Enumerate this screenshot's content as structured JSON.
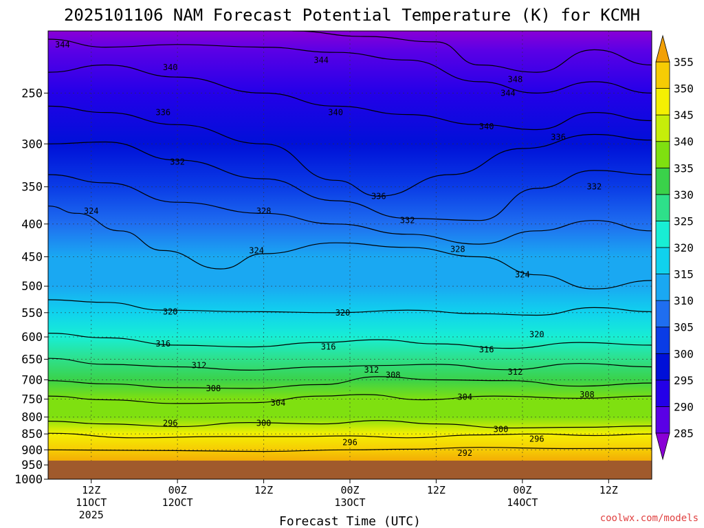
{
  "chart_data": {
    "type": "heatmap",
    "title": "2025101106 NAM Forecast Potential Temperature (K) for KCMH",
    "xlabel": "Forecast Time (UTC)",
    "ylabel": "",
    "credit": "coolwx.com/models",
    "x_range": [
      6,
      90
    ],
    "y_range": [
      1000,
      200
    ],
    "y_scale": "log",
    "grid": "dotted",
    "y_ticks": [
      250,
      300,
      350,
      400,
      450,
      500,
      550,
      600,
      650,
      700,
      750,
      800,
      850,
      900,
      950,
      1000
    ],
    "x_ticks": [
      {
        "hour": 12,
        "label": "12Z",
        "date": "11OCT",
        "year": "2025"
      },
      {
        "hour": 24,
        "label": "00Z",
        "date": "12OCT",
        "year": ""
      },
      {
        "hour": 36,
        "label": "12Z",
        "date": "",
        "year": ""
      },
      {
        "hour": 48,
        "label": "00Z",
        "date": "13OCT",
        "year": ""
      },
      {
        "hour": 60,
        "label": "12Z",
        "date": "",
        "year": ""
      },
      {
        "hour": 72,
        "label": "00Z",
        "date": "14OCT",
        "year": ""
      },
      {
        "hour": 84,
        "label": "12Z",
        "date": "",
        "year": ""
      }
    ],
    "colorbar": {
      "levels": [
        285,
        290,
        295,
        300,
        305,
        310,
        315,
        320,
        325,
        330,
        335,
        340,
        345,
        350,
        355
      ],
      "colors": [
        "#8a00d6",
        "#5a00e6",
        "#2400e8",
        "#0010d8",
        "#0a3ce6",
        "#1f6ef0",
        "#1aa8f2",
        "#10d2ee",
        "#18eed4",
        "#2ee08a",
        "#3ad24a",
        "#7fe010",
        "#c6ee0a",
        "#f4f002",
        "#f6cc04",
        "#f2a006"
      ],
      "low_color": "#8a00d6",
      "high_color": "#f2a006"
    },
    "ground_color": "#a05a2c",
    "series": [
      {
        "name": "292",
        "values": [
          [
            6,
            900
          ],
          [
            20,
            902
          ],
          [
            36,
            905
          ],
          [
            48,
            900
          ],
          [
            56,
            898
          ],
          [
            66,
            892
          ],
          [
            78,
            896
          ],
          [
            90,
            895
          ]
        ]
      },
      {
        "name": "296",
        "values": [
          [
            6,
            848
          ],
          [
            18,
            862
          ],
          [
            30,
            858
          ],
          [
            40,
            858
          ],
          [
            48,
            856
          ],
          [
            56,
            862
          ],
          [
            66,
            853
          ],
          [
            74,
            850
          ],
          [
            82,
            855
          ],
          [
            90,
            850
          ]
        ]
      },
      {
        "name": "300",
        "values": [
          [
            6,
            812
          ],
          [
            14,
            820
          ],
          [
            24,
            828
          ],
          [
            34,
            816
          ],
          [
            44,
            820
          ],
          [
            52,
            810
          ],
          [
            60,
            820
          ],
          [
            70,
            832
          ],
          [
            80,
            830
          ],
          [
            90,
            826
          ]
        ]
      },
      {
        "name": "304",
        "values": [
          [
            6,
            742
          ],
          [
            14,
            752
          ],
          [
            24,
            762
          ],
          [
            34,
            760
          ],
          [
            44,
            742
          ],
          [
            50,
            738
          ],
          [
            58,
            752
          ],
          [
            68,
            742
          ],
          [
            80,
            748
          ],
          [
            90,
            742
          ]
        ]
      },
      {
        "name": "308",
        "values": [
          [
            6,
            702
          ],
          [
            14,
            710
          ],
          [
            24,
            720
          ],
          [
            34,
            722
          ],
          [
            44,
            712
          ],
          [
            52,
            692
          ],
          [
            60,
            700
          ],
          [
            70,
            702
          ],
          [
            80,
            716
          ],
          [
            90,
            708
          ]
        ]
      },
      {
        "name": "312",
        "values": [
          [
            6,
            648
          ],
          [
            14,
            662
          ],
          [
            24,
            668
          ],
          [
            34,
            676
          ],
          [
            44,
            668
          ],
          [
            52,
            665
          ],
          [
            60,
            662
          ],
          [
            70,
            675
          ],
          [
            80,
            660
          ],
          [
            90,
            668
          ]
        ]
      },
      {
        "name": "316",
        "values": [
          [
            6,
            592
          ],
          [
            14,
            602
          ],
          [
            24,
            618
          ],
          [
            34,
            622
          ],
          [
            44,
            612
          ],
          [
            52,
            606
          ],
          [
            60,
            615
          ],
          [
            70,
            625
          ],
          [
            80,
            612
          ],
          [
            90,
            618
          ]
        ]
      },
      {
        "name": "320",
        "values": [
          [
            6,
            525
          ],
          [
            14,
            530
          ],
          [
            22,
            545
          ],
          [
            34,
            548
          ],
          [
            46,
            550
          ],
          [
            56,
            545
          ],
          [
            66,
            552
          ],
          [
            74,
            555
          ],
          [
            82,
            540
          ],
          [
            90,
            548
          ]
        ]
      },
      {
        "name": "324",
        "values": [
          [
            6,
            375
          ],
          [
            10,
            385
          ],
          [
            16,
            410
          ],
          [
            22,
            440
          ],
          [
            30,
            470
          ],
          [
            36,
            445
          ],
          [
            46,
            428
          ],
          [
            56,
            435
          ],
          [
            66,
            450
          ],
          [
            74,
            480
          ],
          [
            82,
            505
          ],
          [
            90,
            490
          ]
        ]
      },
      {
        "name": "328",
        "values": [
          [
            6,
            335
          ],
          [
            14,
            345
          ],
          [
            24,
            370
          ],
          [
            36,
            385
          ],
          [
            46,
            400
          ],
          [
            56,
            415
          ],
          [
            66,
            430
          ],
          [
            74,
            410
          ],
          [
            82,
            395
          ],
          [
            90,
            410
          ]
        ]
      },
      {
        "name": "332",
        "values": [
          [
            6,
            300
          ],
          [
            14,
            298
          ],
          [
            24,
            318
          ],
          [
            36,
            340
          ],
          [
            46,
            368
          ],
          [
            56,
            392
          ],
          [
            66,
            395
          ],
          [
            74,
            352
          ],
          [
            82,
            330
          ],
          [
            90,
            335
          ]
        ]
      },
      {
        "name": "336",
        "values": [
          [
            6,
            262
          ],
          [
            14,
            268
          ],
          [
            24,
            280
          ],
          [
            36,
            300
          ],
          [
            46,
            342
          ],
          [
            52,
            362
          ],
          [
            62,
            335
          ],
          [
            72,
            305
          ],
          [
            82,
            290
          ],
          [
            90,
            296
          ]
        ]
      },
      {
        "name": "340",
        "values": [
          [
            6,
            232
          ],
          [
            14,
            226
          ],
          [
            24,
            236
          ],
          [
            36,
            250
          ],
          [
            46,
            262
          ],
          [
            56,
            270
          ],
          [
            66,
            280
          ],
          [
            74,
            285
          ],
          [
            82,
            268
          ],
          [
            90,
            276
          ]
        ]
      },
      {
        "name": "344",
        "values": [
          [
            6,
            206
          ],
          [
            14,
            212
          ],
          [
            24,
            210
          ],
          [
            36,
            212
          ],
          [
            46,
            216
          ],
          [
            56,
            222
          ],
          [
            66,
            240
          ],
          [
            74,
            250
          ],
          [
            82,
            240
          ],
          [
            90,
            250
          ]
        ]
      },
      {
        "name": "348",
        "values": [
          [
            40,
            200
          ],
          [
            50,
            204
          ],
          [
            60,
            208
          ],
          [
            66,
            226
          ],
          [
            74,
            232
          ],
          [
            82,
            214
          ],
          [
            90,
            226
          ]
        ]
      }
    ],
    "annotations": [
      {
        "text": "344",
        "x": 8,
        "y": 210
      },
      {
        "text": "340",
        "x": 23,
        "y": 228
      },
      {
        "text": "344",
        "x": 44,
        "y": 222
      },
      {
        "text": "348",
        "x": 71,
        "y": 238
      },
      {
        "text": "344",
        "x": 70,
        "y": 250
      },
      {
        "text": "340",
        "x": 46,
        "y": 268
      },
      {
        "text": "340",
        "x": 67,
        "y": 282
      },
      {
        "text": "336",
        "x": 22,
        "y": 268
      },
      {
        "text": "336",
        "x": 77,
        "y": 293
      },
      {
        "text": "332",
        "x": 24,
        "y": 320
      },
      {
        "text": "332",
        "x": 82,
        "y": 350
      },
      {
        "text": "336",
        "x": 52,
        "y": 362
      },
      {
        "text": "332",
        "x": 56,
        "y": 395
      },
      {
        "text": "328",
        "x": 36,
        "y": 382
      },
      {
        "text": "328",
        "x": 63,
        "y": 438
      },
      {
        "text": "324",
        "x": 12,
        "y": 382
      },
      {
        "text": "324",
        "x": 35,
        "y": 440
      },
      {
        "text": "324",
        "x": 72,
        "y": 480
      },
      {
        "text": "320",
        "x": 23,
        "y": 548
      },
      {
        "text": "320",
        "x": 47,
        "y": 550
      },
      {
        "text": "320",
        "x": 74,
        "y": 595
      },
      {
        "text": "316",
        "x": 22,
        "y": 615
      },
      {
        "text": "316",
        "x": 45,
        "y": 622
      },
      {
        "text": "316",
        "x": 67,
        "y": 628
      },
      {
        "text": "312",
        "x": 27,
        "y": 665
      },
      {
        "text": "312",
        "x": 51,
        "y": 675
      },
      {
        "text": "308",
        "x": 54,
        "y": 688
      },
      {
        "text": "312",
        "x": 71,
        "y": 680
      },
      {
        "text": "308",
        "x": 29,
        "y": 722
      },
      {
        "text": "304",
        "x": 38,
        "y": 760
      },
      {
        "text": "304",
        "x": 64,
        "y": 745
      },
      {
        "text": "308",
        "x": 81,
        "y": 738
      },
      {
        "text": "296",
        "x": 23,
        "y": 818
      },
      {
        "text": "300",
        "x": 36,
        "y": 818
      },
      {
        "text": "300",
        "x": 69,
        "y": 836
      },
      {
        "text": "296",
        "x": 74,
        "y": 866
      },
      {
        "text": "296",
        "x": 48,
        "y": 876
      },
      {
        "text": "292",
        "x": 64,
        "y": 910
      }
    ]
  }
}
